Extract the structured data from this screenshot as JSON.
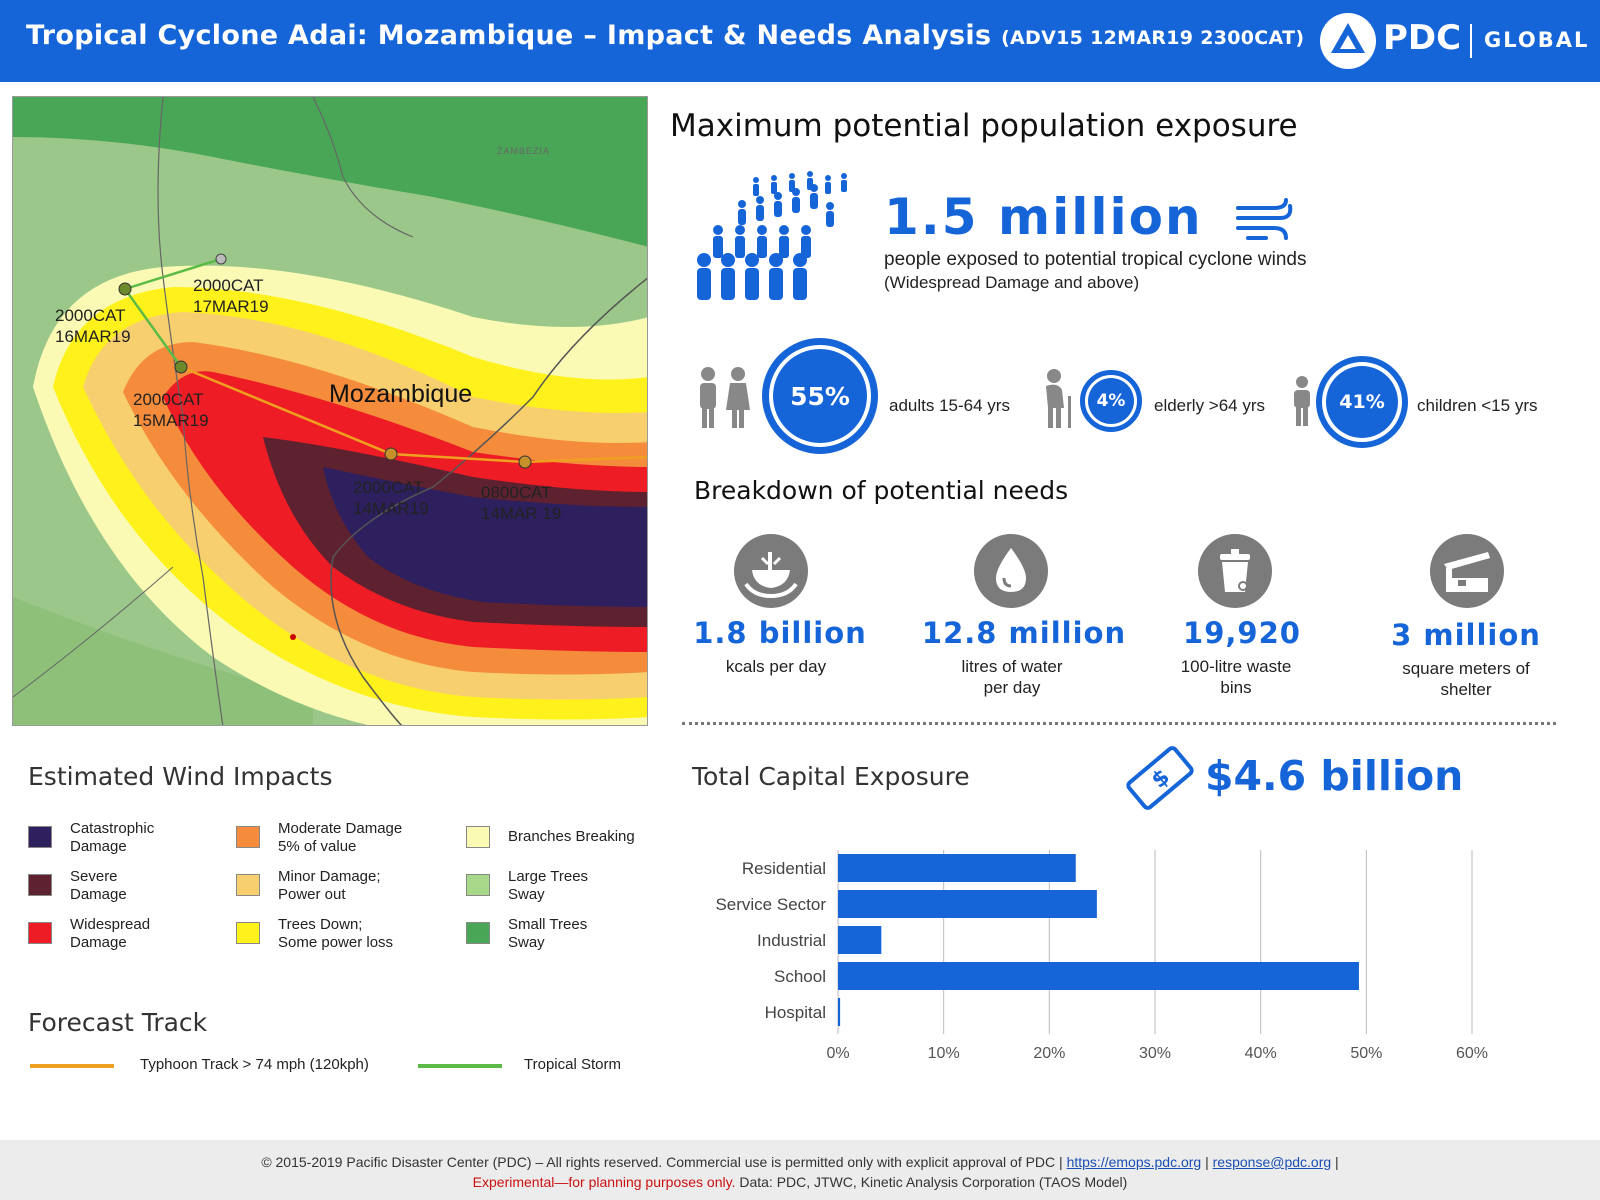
{
  "header": {
    "title": "Tropical Cyclone Adai: Mozambique – Impact & Needs Analysis",
    "subtitle": "(ADV15 12MAR19 2300CAT)",
    "brand": "PDC",
    "brand_suffix": "GLOBAL",
    "color": "#1565d8"
  },
  "map": {
    "country_label": "Mozambique",
    "region_label": "ZAMBEZIA",
    "points": [
      {
        "label": "2000CAT\n17MAR19"
      },
      {
        "label": "2000CAT\n16MAR19"
      },
      {
        "label": "2000CAT\n15MAR19"
      },
      {
        "label": "2000CAT\n14MAR19"
      },
      {
        "label": "0800CAT\n14MAR 19"
      }
    ]
  },
  "population": {
    "title": "Maximum potential population exposure",
    "value": "1.5 million",
    "description": "people exposed to potential tropical cyclone winds",
    "note": "(Widespread Damage and above)",
    "demographics": [
      {
        "percent": "55%",
        "label": "adults 15-64 yrs",
        "icon": "adults-icon"
      },
      {
        "percent": "4%",
        "label": "elderly >64 yrs",
        "icon": "elderly-icon"
      },
      {
        "percent": "41%",
        "label": "children <15 yrs",
        "icon": "child-icon"
      }
    ]
  },
  "needs": {
    "title": "Breakdown of potential needs",
    "items": [
      {
        "value": "1.8 billion",
        "label": "kcals per day",
        "icon": "food-icon"
      },
      {
        "value": "12.8 million",
        "label": "litres of water\nper day",
        "icon": "water-drop-icon"
      },
      {
        "value": "19,920",
        "label": "100-litre  waste\nbins",
        "icon": "waste-bin-icon"
      },
      {
        "value": "3 million",
        "label": "square meters of\nshelter",
        "icon": "shelter-icon"
      }
    ]
  },
  "legend": {
    "title": "Estimated Wind Impacts",
    "items": [
      {
        "label": "Catastrophic\nDamage",
        "color": "#2e1f5e"
      },
      {
        "label": "Severe\nDamage",
        "color": "#5e2130"
      },
      {
        "label": "Widespread\nDamage",
        "color": "#ee1c24"
      },
      {
        "label": "Moderate Damage\n5% of value",
        "color": "#f58c3c"
      },
      {
        "label": "Minor Damage;\nPower out",
        "color": "#f7cf6e"
      },
      {
        "label": "Trees Down;\nSome power loss",
        "color": "#fff21c"
      },
      {
        "label": "Branches Breaking",
        "color": "#fafab4"
      },
      {
        "label": "Large Trees\nSway",
        "color": "#a8d98a"
      },
      {
        "label": "Small Trees\nSway",
        "color": "#4aa657"
      }
    ]
  },
  "forecast": {
    "title": "Forecast Track",
    "items": [
      {
        "label": "Typhoon Track > 74 mph (120kph)",
        "color": "#f0a020"
      },
      {
        "label": "Tropical Storm",
        "color": "#5cba47"
      }
    ]
  },
  "capital": {
    "title": "Total Capital Exposure",
    "value": "$4.6 billion"
  },
  "chart_data": {
    "type": "bar",
    "orientation": "horizontal",
    "categories": [
      "Residential",
      "Service Sector",
      "Industrial",
      "School",
      "Hospital"
    ],
    "values": [
      22.5,
      24.5,
      4.1,
      49.3,
      0.2
    ],
    "xlim": [
      0,
      60
    ],
    "xticks": [
      "0%",
      "10%",
      "20%",
      "30%",
      "40%",
      "50%",
      "60%"
    ],
    "grid": true,
    "bar_color": "#1565d8"
  },
  "footer": {
    "copyright": "© 2015-2019 Pacific Disaster Center (PDC) – All rights reserved. Commercial use is permitted only with explicit approval of PDC",
    "link1": "https://emops.pdc.org",
    "link2": "response@pdc.org",
    "experimental": "Experimental—for planning purposes only.",
    "data_sources": "Data:  PDC, JTWC, Kinetic Analysis Corporation (TAOS Model)"
  }
}
